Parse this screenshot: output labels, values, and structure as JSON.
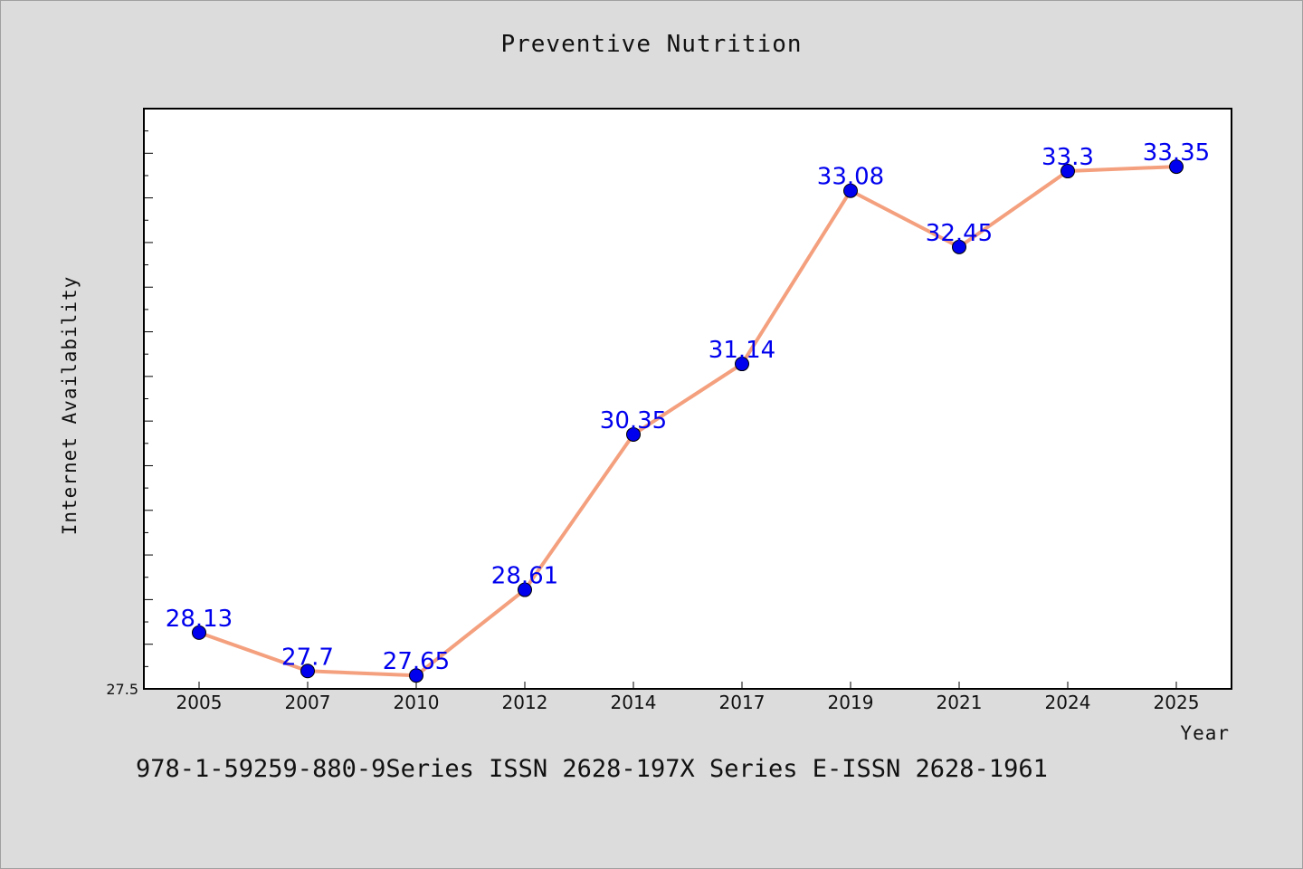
{
  "footer_text": "978-1-59259-880-9Series ISSN 2628-197X Series E-ISSN 2628-1961",
  "colors": {
    "line": "#f4a07e",
    "marker": "#0000ee",
    "label": "#0000ee",
    "background": "#dcdcdc",
    "plot_background": "#ffffff"
  },
  "chart_data": {
    "type": "line",
    "title": "Preventive Nutrition",
    "xlabel": "Year",
    "ylabel": "Internet Availability",
    "categories": [
      "2005",
      "2007",
      "2010",
      "2012",
      "2014",
      "2017",
      "2019",
      "2021",
      "2024",
      "2025"
    ],
    "series": [
      {
        "values": [
          28.13,
          27.7,
          27.65,
          28.61,
          30.35,
          31.14,
          33.08,
          32.45,
          33.3,
          33.35
        ],
        "labels": [
          "28.13",
          "27.7",
          "27.65",
          "28.61",
          "30.35",
          "31.14",
          "33.08",
          "32.45",
          "33.3",
          "33.35"
        ]
      }
    ],
    "y_tick_labels": [
      "27.5"
    ],
    "ylim": [
      27.5,
      34
    ],
    "grid": false,
    "legend": "none"
  }
}
